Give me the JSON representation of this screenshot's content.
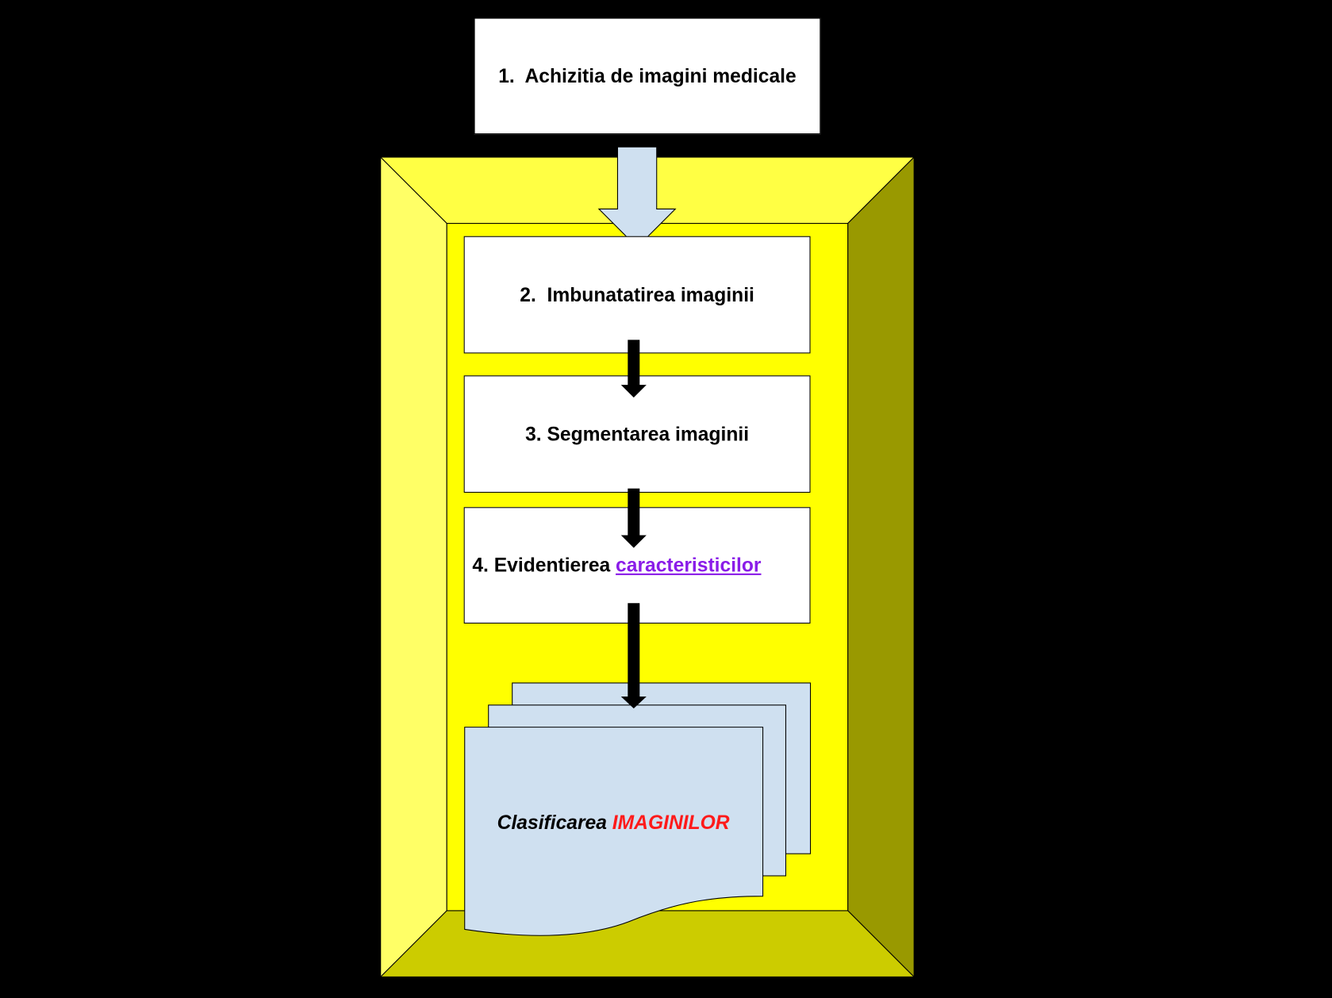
{
  "steps": {
    "step1": "1.  Achizitia de imagini medicale",
    "step2": "2.  Imbunatatirea imaginii",
    "step3": "3. Segmentarea imaginii",
    "step4_prefix": "4. Evidentierea ",
    "step4_link": "caracteristicilor",
    "step5_prefix": "Clasificarea ",
    "step5_highlight": "IMAGINILOR"
  },
  "colors": {
    "background": "#000000",
    "frame_top": "#ffff44",
    "frame_left": "#ffff66",
    "frame_right": "#999900",
    "frame_bottom": "#cccc00",
    "frame_inner": "#ffff00",
    "box_fill": "#ffffff",
    "arrow_light": "#cfe0f0",
    "link": "#8a1ce8",
    "highlight": "#ff1a1a"
  }
}
